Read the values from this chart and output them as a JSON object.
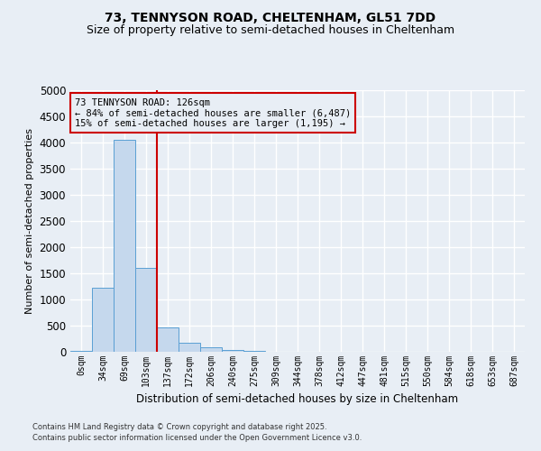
{
  "title_line1": "73, TENNYSON ROAD, CHELTENHAM, GL51 7DD",
  "title_line2": "Size of property relative to semi-detached houses in Cheltenham",
  "xlabel": "Distribution of semi-detached houses by size in Cheltenham",
  "ylabel": "Number of semi-detached properties",
  "footnote1": "Contains HM Land Registry data © Crown copyright and database right 2025.",
  "footnote2": "Contains public sector information licensed under the Open Government Licence v3.0.",
  "annotation_line1": "73 TENNYSON ROAD: 126sqm",
  "annotation_line2": "← 84% of semi-detached houses are smaller (6,487)",
  "annotation_line3": "15% of semi-detached houses are larger (1,195) →",
  "bar_labels": [
    "0sqm",
    "34sqm",
    "69sqm",
    "103sqm",
    "137sqm",
    "172sqm",
    "206sqm",
    "240sqm",
    "275sqm",
    "309sqm",
    "344sqm",
    "378sqm",
    "412sqm",
    "447sqm",
    "481sqm",
    "515sqm",
    "550sqm",
    "584sqm",
    "618sqm",
    "653sqm",
    "687sqm"
  ],
  "bar_values": [
    10,
    1220,
    4050,
    1600,
    460,
    175,
    80,
    40,
    15,
    5,
    3,
    2,
    1,
    1,
    0,
    0,
    0,
    0,
    0,
    0,
    0
  ],
  "bar_color": "#c5d8ed",
  "bar_edge_color": "#5a9fd4",
  "property_line_x": 3.5,
  "property_line_color": "#cc0000",
  "ylim": [
    0,
    5000
  ],
  "yticks": [
    0,
    500,
    1000,
    1500,
    2000,
    2500,
    3000,
    3500,
    4000,
    4500,
    5000
  ],
  "bg_color": "#e8eef5",
  "grid_color": "#ffffff",
  "annotation_box_color": "#cc0000",
  "title_fontsize": 10,
  "subtitle_fontsize": 9
}
